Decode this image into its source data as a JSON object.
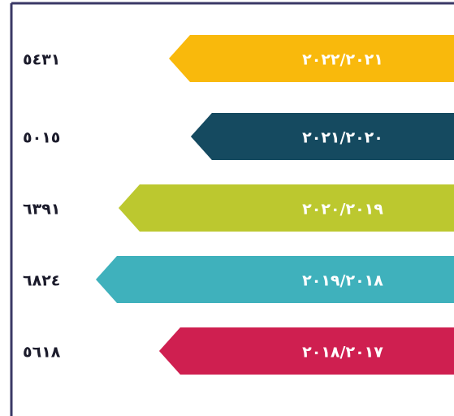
{
  "chart_data": {
    "type": "bar",
    "orientation": "horizontal",
    "categories": [
      "٢٠٢٢/٢٠٢١",
      "٢٠٢١/٢٠٢٠",
      "٢٠٢٠/٢٠١٩",
      "٢٠١٩/٢٠١٨",
      "٢٠١٨/٢٠١٧"
    ],
    "values": [
      5431,
      5015,
      6391,
      6824,
      5618
    ],
    "value_labels": [
      "٥٤٣١",
      "٥٠١٥",
      "٦٣٩١",
      "٦٨٢٤",
      "٥٦١٨"
    ],
    "colors": [
      "#f9b90c",
      "#154a60",
      "#bcc82f",
      "#3fb1bc",
      "#cf1f50"
    ]
  }
}
